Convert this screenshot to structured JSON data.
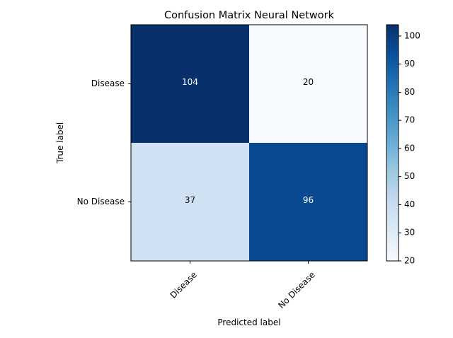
{
  "chart_data": {
    "type": "heatmap",
    "title": "Confusion Matrix Neural Network",
    "xlabel": "Predicted label",
    "ylabel": "True label",
    "x_categories": [
      "Disease",
      "No Disease"
    ],
    "y_categories": [
      "Disease",
      "No Disease"
    ],
    "values": [
      [
        104,
        20
      ],
      [
        37,
        96
      ]
    ],
    "colormap": "Blues",
    "colorbar": {
      "min": 20,
      "max": 104,
      "ticks": [
        "20",
        "30",
        "40",
        "50",
        "60",
        "70",
        "80",
        "90",
        "100"
      ]
    },
    "text_color_dark_cells": "#ffffff",
    "text_color_light_cells": "#000000"
  }
}
